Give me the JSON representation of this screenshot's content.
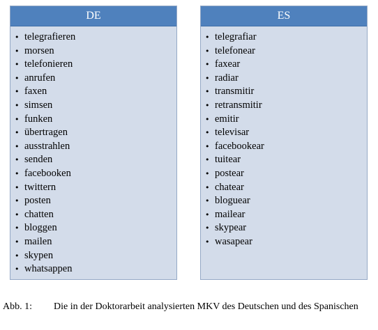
{
  "columns": [
    {
      "header": "DE",
      "items": [
        "telegrafieren",
        "morsen",
        "telefonieren",
        "anrufen",
        "faxen",
        "simsen",
        "funken",
        "übertragen",
        "ausstrahlen",
        "senden",
        "facebooken",
        "twittern",
        "posten",
        "chatten",
        "bloggen",
        "mailen",
        "skypen",
        "whatsappen"
      ]
    },
    {
      "header": "ES",
      "items": [
        "telegrafiar",
        "telefonear",
        "faxear",
        "radiar",
        "transmitir",
        "retransmitir",
        "emitir",
        "televisar",
        "facebookear",
        "tuitear",
        "postear",
        "chatear",
        "bloguear",
        "mailear",
        "skypear",
        "wasapear"
      ]
    }
  ],
  "caption": {
    "label": "Abb. 1:",
    "text": "Die in der Doktorarbeit analysierten MKV des Deutschen und des Spanischen"
  },
  "colors": {
    "header_bg": "#4f81bd",
    "box_bg": "#d3dcea",
    "box_border": "#95a9c6"
  }
}
